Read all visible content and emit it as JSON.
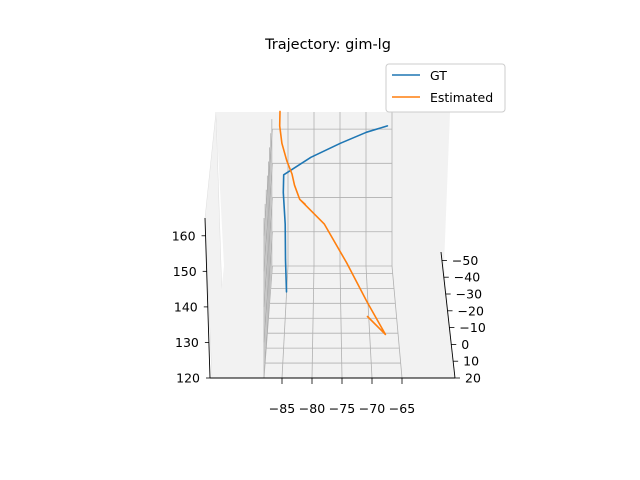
{
  "chart_data": {
    "type": "line",
    "projection": "3d",
    "title": "Trajectory: gim-lg",
    "legend_position": "upper-right",
    "grid": true,
    "xlabel": "",
    "ylabel": "",
    "zlabel": "",
    "x_ticks": [
      "−85",
      "−80",
      "−75",
      "−70",
      "−65"
    ],
    "y_ticks": [
      "−50",
      "−40",
      "−30",
      "−20",
      "−10",
      "0",
      "10",
      "20"
    ],
    "z_ticks": [
      "120",
      "130",
      "140",
      "150",
      "160"
    ],
    "xlim": [
      -88,
      -65
    ],
    "ylim": [
      -55,
      20
    ],
    "zlim": [
      120,
      165
    ],
    "series": [
      {
        "name": "GT",
        "color": "#1f77b4",
        "points": [
          {
            "x": -66.0,
            "y": -50,
            "z": 163
          },
          {
            "x": -70.0,
            "y": -48,
            "z": 162
          },
          {
            "x": -75.0,
            "y": -45,
            "z": 160
          },
          {
            "x": -80.5,
            "y": -40,
            "z": 158
          },
          {
            "x": -85.5,
            "y": -35,
            "z": 155
          },
          {
            "x": -85.5,
            "y": -30,
            "z": 152
          },
          {
            "x": -85.0,
            "y": -20,
            "z": 147
          },
          {
            "x": -84.8,
            "y": -10,
            "z": 141
          },
          {
            "x": -84.5,
            "y": 0,
            "z": 136
          }
        ]
      },
      {
        "name": "Estimated",
        "color": "#ff7f0e",
        "points": [
          {
            "x": -86.5,
            "y": -53,
            "z": 166
          },
          {
            "x": -86.5,
            "y": -50,
            "z": 163
          },
          {
            "x": -86.0,
            "y": -45,
            "z": 160
          },
          {
            "x": -85.0,
            "y": -40,
            "z": 157
          },
          {
            "x": -84.0,
            "y": -38,
            "z": 154
          },
          {
            "x": -83.5,
            "y": -35,
            "z": 152
          },
          {
            "x": -82.5,
            "y": -30,
            "z": 150
          },
          {
            "x": -81.5,
            "y": -29,
            "z": 149
          },
          {
            "x": -82.5,
            "y": -30,
            "z": 150
          },
          {
            "x": -78.0,
            "y": -25,
            "z": 145
          },
          {
            "x": -74.0,
            "y": -15,
            "z": 138
          },
          {
            "x": -70.5,
            "y": -5,
            "z": 131
          },
          {
            "x": -67.5,
            "y": 5,
            "z": 126
          },
          {
            "x": -70.5,
            "y": 0,
            "z": 129
          }
        ]
      }
    ]
  }
}
